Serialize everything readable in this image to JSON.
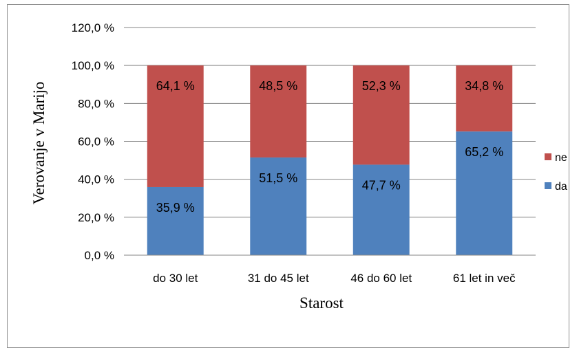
{
  "chart_data": {
    "type": "bar",
    "stacked": true,
    "categories": [
      "do 30 let",
      "31 do 45 let",
      "46 do 60 let",
      "61 let in več"
    ],
    "series": [
      {
        "name": "da",
        "values": [
          35.9,
          51.5,
          47.7,
          65.2
        ],
        "color": "#4f81bd",
        "labels": [
          "35,9 %",
          "51,5 %",
          "47,7 %",
          "65,2 %"
        ]
      },
      {
        "name": "ne",
        "values": [
          64.1,
          48.5,
          52.3,
          34.8
        ],
        "color": "#c0504d",
        "labels": [
          "64,1 %",
          "48,5 %",
          "52,3 %",
          "34,8 %"
        ]
      }
    ],
    "title": "",
    "xlabel": "Starost",
    "ylabel": "Verovanje v Marijo",
    "ylim": [
      0,
      120
    ],
    "yticks": [
      0,
      20,
      40,
      60,
      80,
      100,
      120
    ],
    "ytick_labels": [
      "0,0 %",
      "20,0 %",
      "40,0 %",
      "60,0 %",
      "80,0 %",
      "100,0 %",
      "120,0 %"
    ],
    "grid": true,
    "gridline_color": "#868686",
    "legend_position": "right",
    "legend": [
      {
        "name": "ne",
        "color": "#c0504d"
      },
      {
        "name": "da",
        "color": "#4f81bd"
      }
    ]
  }
}
